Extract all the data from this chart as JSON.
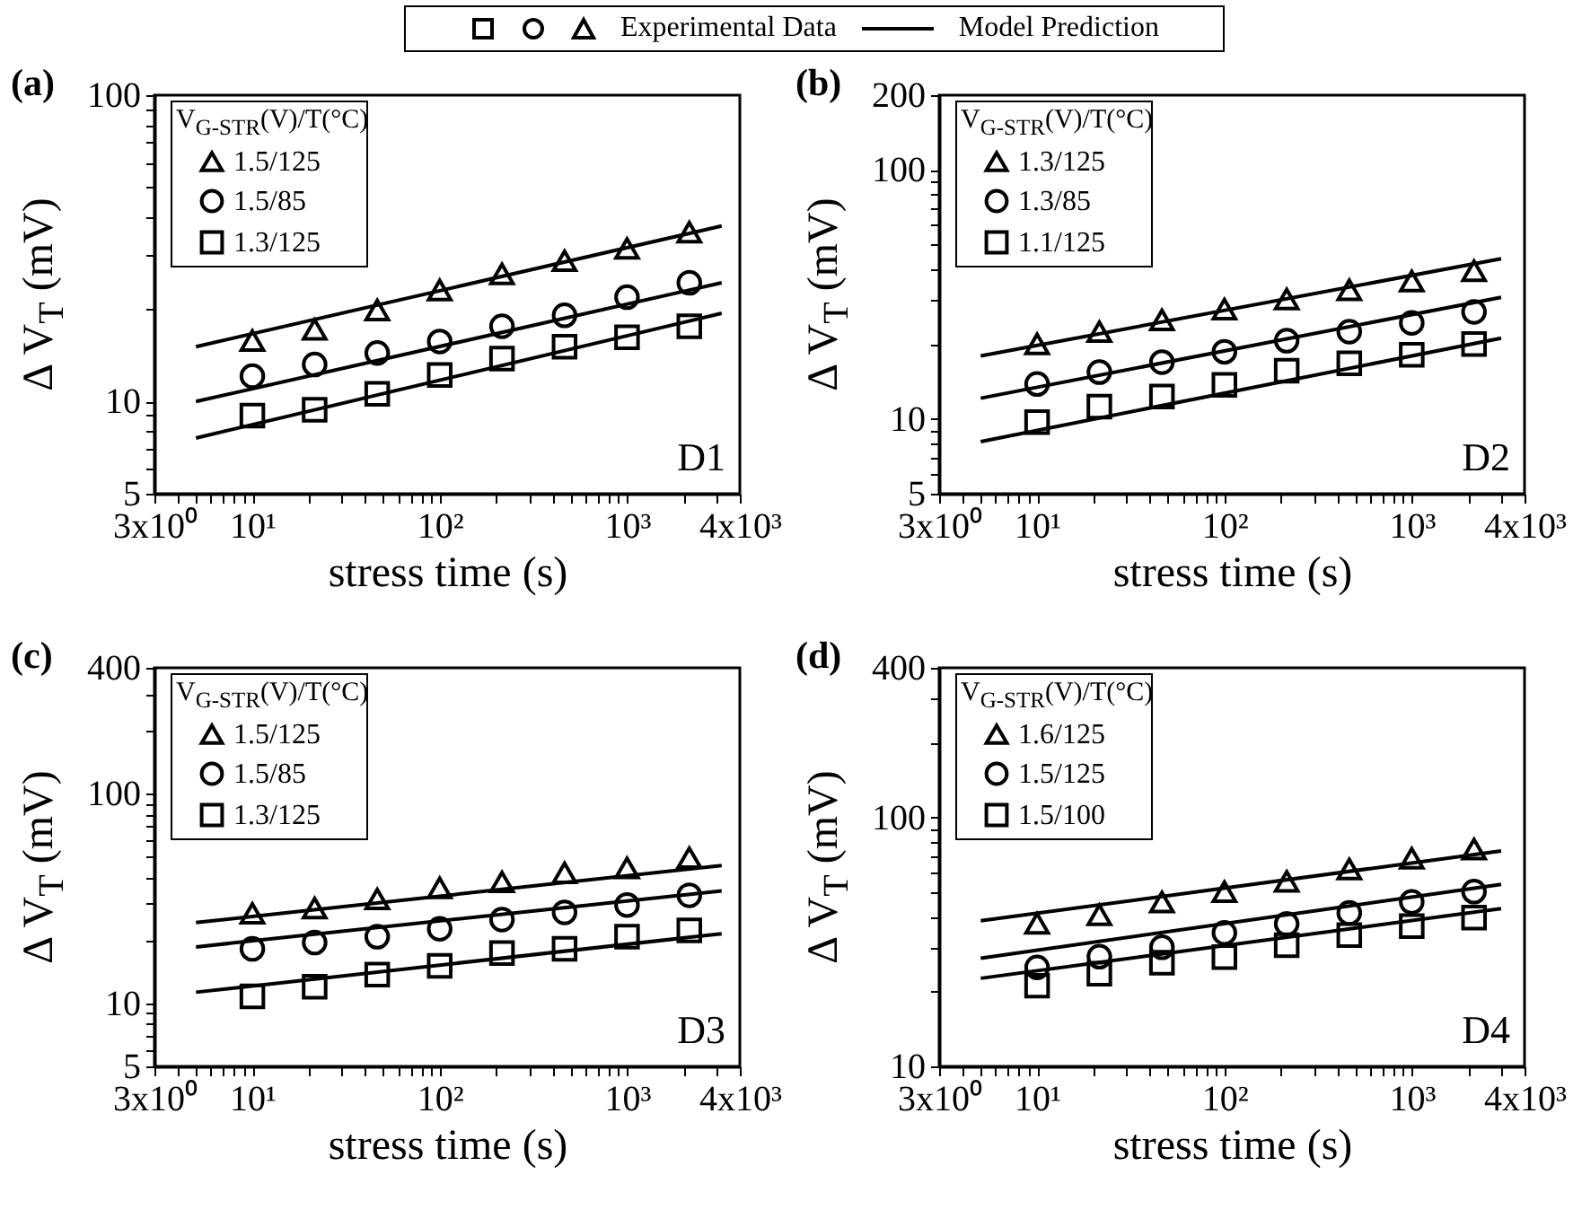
{
  "chart_data": [
    {
      "type": "scatter",
      "title": "(a)",
      "xlabel": "stress time (s)",
      "ylabel": "Δ V$_{T}$ (mV)",
      "legend_title": "V$_{G-STR}$(V)/T(°C)",
      "legend": "top left",
      "log": "xy",
      "annotations": [
        "D1",
        "Experimental Data",
        "Model Prediction"
      ],
      "xlim": [
        3,
        4000
      ],
      "xticks": [
        {
          "value": 3,
          "label": "3x10⁰"
        },
        {
          "value": 4,
          "label": null
        },
        {
          "value": 5,
          "label": null
        },
        {
          "value": 6,
          "label": null
        },
        {
          "value": 7,
          "label": null
        },
        {
          "value": 8,
          "label": null
        },
        {
          "value": 9,
          "label": null
        },
        {
          "value": 10,
          "label": "10¹"
        },
        {
          "value": 20,
          "label": null
        },
        {
          "value": 30,
          "label": null
        },
        {
          "value": 40,
          "label": null
        },
        {
          "value": 50,
          "label": null
        },
        {
          "value": 60,
          "label": null
        },
        {
          "value": 70,
          "label": null
        },
        {
          "value": 80,
          "label": null
        },
        {
          "value": 90,
          "label": null
        },
        {
          "value": 100,
          "label": "10²"
        },
        {
          "value": 200,
          "label": null
        },
        {
          "value": 300,
          "label": null
        },
        {
          "value": 400,
          "label": null
        },
        {
          "value": 500,
          "label": null
        },
        {
          "value": 600,
          "label": null
        },
        {
          "value": 700,
          "label": null
        },
        {
          "value": 800,
          "label": null
        },
        {
          "value": 900,
          "label": null
        },
        {
          "value": 1000,
          "label": "10³"
        },
        {
          "value": 2000,
          "label": null
        },
        {
          "value": 3000,
          "label": null
        },
        {
          "value": 4000,
          "label": "4x10³"
        }
      ],
      "ylim": [
        5,
        100
      ],
      "yticks": [
        5,
        {
          "value": 6,
          "label": null
        },
        {
          "value": 7,
          "label": null
        },
        {
          "value": 8,
          "label": null
        },
        {
          "value": 9,
          "label": null
        },
        10,
        {
          "value": 20,
          "label": null
        },
        {
          "value": 30,
          "label": null
        },
        {
          "value": 40,
          "label": null
        },
        {
          "value": 50,
          "label": null
        },
        {
          "value": 60,
          "label": null
        },
        {
          "value": 70,
          "label": null
        },
        {
          "value": 80,
          "label": null
        },
        {
          "value": 90,
          "label": null
        },
        100
      ],
      "x": [
        10,
        21.5,
        46.4,
        100,
        215,
        464,
        1000,
        2150
      ],
      "series": [
        {
          "name": "1.5/125",
          "color": "#000000",
          "marker": "triangle",
          "values": [
            15.8,
            17.2,
            19.9,
            23.1,
            26.1,
            28.8,
            31.6,
            35.7
          ]
        },
        {
          "name": "1.5/85",
          "color": "#000000",
          "marker": "circle",
          "values": [
            12.1,
            13.2,
            14.4,
            15.7,
            17.6,
            19.1,
            21.9,
            24.4
          ]
        },
        {
          "name": "1.3/125",
          "color": "#000000",
          "marker": "square",
          "values": [
            9.0,
            9.4,
            10.6,
            12.2,
            13.8,
            15.1,
            16.2,
            17.6
          ]
        },
        {
          "type": "line",
          "color": "#000000",
          "x": [
            5,
            3200
          ],
          "values": [
            15.1,
            37.4
          ]
        },
        {
          "type": "line",
          "color": "#000000",
          "x": [
            5,
            3200
          ],
          "values": [
            10.0,
            24.4
          ]
        },
        {
          "type": "line",
          "color": "#000000",
          "x": [
            5,
            3200
          ],
          "values": [
            7.6,
            19.4
          ]
        }
      ]
    },
    {
      "type": "scatter",
      "title": "(b)",
      "xlabel": "stress time (s)",
      "ylabel": "Δ V$_{T}$ (mV)",
      "legend_title": "V$_{G-STR}$(V)/T(°C)",
      "legend": "top left",
      "log": "xy",
      "annotations": [
        "D2"
      ],
      "xlim": [
        3,
        4000
      ],
      "xticks": [
        {
          "value": 3,
          "label": "3x10⁰"
        },
        {
          "value": 4,
          "label": null
        },
        {
          "value": 5,
          "label": null
        },
        {
          "value": 6,
          "label": null
        },
        {
          "value": 7,
          "label": null
        },
        {
          "value": 8,
          "label": null
        },
        {
          "value": 9,
          "label": null
        },
        {
          "value": 10,
          "label": "10¹"
        },
        {
          "value": 20,
          "label": null
        },
        {
          "value": 30,
          "label": null
        },
        {
          "value": 40,
          "label": null
        },
        {
          "value": 50,
          "label": null
        },
        {
          "value": 60,
          "label": null
        },
        {
          "value": 70,
          "label": null
        },
        {
          "value": 80,
          "label": null
        },
        {
          "value": 90,
          "label": null
        },
        {
          "value": 100,
          "label": "10²"
        },
        {
          "value": 200,
          "label": null
        },
        {
          "value": 300,
          "label": null
        },
        {
          "value": 400,
          "label": null
        },
        {
          "value": 500,
          "label": null
        },
        {
          "value": 600,
          "label": null
        },
        {
          "value": 700,
          "label": null
        },
        {
          "value": 800,
          "label": null
        },
        {
          "value": 900,
          "label": null
        },
        {
          "value": 1000,
          "label": "10³"
        },
        {
          "value": 2000,
          "label": null
        },
        {
          "value": 3000,
          "label": null
        },
        {
          "value": 4000,
          "label": "4x10³"
        }
      ],
      "ylim": [
        5,
        200
      ],
      "yticks": [
        5,
        {
          "value": 6,
          "label": null
        },
        {
          "value": 7,
          "label": null
        },
        {
          "value": 8,
          "label": null
        },
        {
          "value": 9,
          "label": null
        },
        10,
        {
          "value": 20,
          "label": null
        },
        {
          "value": 30,
          "label": null
        },
        {
          "value": 40,
          "label": null
        },
        {
          "value": 50,
          "label": null
        },
        {
          "value": 60,
          "label": null
        },
        {
          "value": 70,
          "label": null
        },
        {
          "value": 80,
          "label": null
        },
        {
          "value": 90,
          "label": null
        },
        100,
        200
      ],
      "x": [
        10,
        21.5,
        46.4,
        100,
        215,
        464,
        1000,
        2150
      ],
      "series": [
        {
          "name": "1.3/125",
          "color": "#000000",
          "marker": "triangle",
          "values": [
            20.0,
            22.4,
            25.0,
            27.6,
            30.3,
            33.0,
            35.8,
            39.4
          ]
        },
        {
          "name": "1.3/85",
          "color": "#000000",
          "marker": "circle",
          "values": [
            13.8,
            15.4,
            16.9,
            18.6,
            20.6,
            22.4,
            24.3,
            26.9
          ]
        },
        {
          "name": "1.1/125",
          "color": "#000000",
          "marker": "square",
          "values": [
            9.7,
            11.2,
            12.3,
            13.7,
            15.6,
            16.7,
            18.1,
            20.0
          ]
        },
        {
          "type": "line",
          "color": "#000000",
          "x": [
            5,
            3000
          ],
          "values": [
            17.9,
            44.0
          ]
        },
        {
          "type": "line",
          "color": "#000000",
          "x": [
            5,
            3000
          ],
          "values": [
            12.1,
            30.8
          ]
        },
        {
          "type": "line",
          "color": "#000000",
          "x": [
            5,
            3000
          ],
          "values": [
            8.1,
            21.1
          ]
        }
      ]
    },
    {
      "type": "scatter",
      "title": "(c)",
      "xlabel": "stress time (s)",
      "ylabel": "Δ V$_{T}$ (mV)",
      "legend_title": "V$_{G-STR}$(V)/T(°C)",
      "legend": "top left",
      "log": "xy",
      "annotations": [
        "D3"
      ],
      "xlim": [
        3,
        4000
      ],
      "xticks": [
        {
          "value": 3,
          "label": "3x10⁰"
        },
        {
          "value": 4,
          "label": null
        },
        {
          "value": 5,
          "label": null
        },
        {
          "value": 6,
          "label": null
        },
        {
          "value": 7,
          "label": null
        },
        {
          "value": 8,
          "label": null
        },
        {
          "value": 9,
          "label": null
        },
        {
          "value": 10,
          "label": "10¹"
        },
        {
          "value": 20,
          "label": null
        },
        {
          "value": 30,
          "label": null
        },
        {
          "value": 40,
          "label": null
        },
        {
          "value": 50,
          "label": null
        },
        {
          "value": 60,
          "label": null
        },
        {
          "value": 70,
          "label": null
        },
        {
          "value": 80,
          "label": null
        },
        {
          "value": 90,
          "label": null
        },
        {
          "value": 100,
          "label": "10²"
        },
        {
          "value": 200,
          "label": null
        },
        {
          "value": 300,
          "label": null
        },
        {
          "value": 400,
          "label": null
        },
        {
          "value": 500,
          "label": null
        },
        {
          "value": 600,
          "label": null
        },
        {
          "value": 700,
          "label": null
        },
        {
          "value": 800,
          "label": null
        },
        {
          "value": 900,
          "label": null
        },
        {
          "value": 1000,
          "label": "10³"
        },
        {
          "value": 2000,
          "label": null
        },
        {
          "value": 3000,
          "label": null
        },
        {
          "value": 4000,
          "label": "4x10³"
        }
      ],
      "ylim": [
        5,
        400
      ],
      "yticks": [
        5,
        {
          "value": 6,
          "label": null
        },
        {
          "value": 7,
          "label": null
        },
        {
          "value": 8,
          "label": null
        },
        {
          "value": 9,
          "label": null
        },
        10,
        {
          "value": 20,
          "label": null
        },
        {
          "value": 30,
          "label": null
        },
        {
          "value": 40,
          "label": null
        },
        {
          "value": 50,
          "label": null
        },
        {
          "value": 60,
          "label": null
        },
        {
          "value": 70,
          "label": null
        },
        {
          "value": 80,
          "label": null
        },
        {
          "value": 90,
          "label": null
        },
        100,
        {
          "value": 200,
          "label": null
        },
        {
          "value": 300,
          "label": null
        },
        400
      ],
      "x": [
        10,
        21.5,
        46.4,
        100,
        215,
        464,
        1000,
        2150
      ],
      "series": [
        {
          "name": "1.5/125",
          "color": "#000000",
          "marker": "triangle",
          "values": [
            26.9,
            28.5,
            31.5,
            35.6,
            38.0,
            42.0,
            44.3,
            49.6
          ]
        },
        {
          "name": "1.5/85",
          "color": "#000000",
          "marker": "circle",
          "values": [
            18.2,
            19.5,
            20.8,
            22.7,
            25.1,
            27.2,
            29.5,
            32.8
          ]
        },
        {
          "name": "1.3/125",
          "color": "#000000",
          "marker": "square",
          "values": [
            10.8,
            12.0,
            13.7,
            15.1,
            17.4,
            18.2,
            20.8,
            22.3
          ]
        },
        {
          "type": "line",
          "color": "#000000",
          "x": [
            5,
            3200
          ],
          "values": [
            24.3,
            45.5
          ]
        },
        {
          "type": "line",
          "color": "#000000",
          "x": [
            5,
            3200
          ],
          "values": [
            18.6,
            34.4
          ]
        },
        {
          "type": "line",
          "color": "#000000",
          "x": [
            5,
            3200
          ],
          "values": [
            11.3,
            21.5
          ]
        }
      ]
    },
    {
      "type": "scatter",
      "title": "(d)",
      "xlabel": "stress time (s)",
      "ylabel": "Δ V$_{T}$ (mV)",
      "legend_title": "V$_{G-STR}$(V)/T(°C)",
      "legend": "top left",
      "log": "xy",
      "annotations": [
        "D4"
      ],
      "xlim": [
        3,
        4000
      ],
      "xticks": [
        {
          "value": 3,
          "label": "3x10⁰"
        },
        {
          "value": 4,
          "label": null
        },
        {
          "value": 5,
          "label": null
        },
        {
          "value": 6,
          "label": null
        },
        {
          "value": 7,
          "label": null
        },
        {
          "value": 8,
          "label": null
        },
        {
          "value": 9,
          "label": null
        },
        {
          "value": 10,
          "label": "10¹"
        },
        {
          "value": 20,
          "label": null
        },
        {
          "value": 30,
          "label": null
        },
        {
          "value": 40,
          "label": null
        },
        {
          "value": 50,
          "label": null
        },
        {
          "value": 60,
          "label": null
        },
        {
          "value": 70,
          "label": null
        },
        {
          "value": 80,
          "label": null
        },
        {
          "value": 90,
          "label": null
        },
        {
          "value": 100,
          "label": "10²"
        },
        {
          "value": 200,
          "label": null
        },
        {
          "value": 300,
          "label": null
        },
        {
          "value": 400,
          "label": null
        },
        {
          "value": 500,
          "label": null
        },
        {
          "value": 600,
          "label": null
        },
        {
          "value": 700,
          "label": null
        },
        {
          "value": 800,
          "label": null
        },
        {
          "value": 900,
          "label": null
        },
        {
          "value": 1000,
          "label": "10³"
        },
        {
          "value": 2000,
          "label": null
        },
        {
          "value": 3000,
          "label": null
        },
        {
          "value": 4000,
          "label": "4x10³"
        }
      ],
      "ylim": [
        10,
        400
      ],
      "yticks": [
        10,
        {
          "value": 20,
          "label": null
        },
        {
          "value": 30,
          "label": null
        },
        {
          "value": 40,
          "label": null
        },
        {
          "value": 50,
          "label": null
        },
        {
          "value": 60,
          "label": null
        },
        {
          "value": 70,
          "label": null
        },
        {
          "value": 80,
          "label": null
        },
        {
          "value": 90,
          "label": null
        },
        100,
        {
          "value": 200,
          "label": null
        },
        {
          "value": 300,
          "label": null
        },
        400
      ],
      "x": [
        10,
        21.5,
        46.4,
        100,
        215,
        464,
        1000,
        2150
      ],
      "series": [
        {
          "name": "1.6/125",
          "color": "#000000",
          "marker": "triangle",
          "values": [
            37.6,
            40.7,
            45.8,
            50.4,
            55.4,
            62.1,
            68.7,
            74.7
          ]
        },
        {
          "name": "1.5/125",
          "color": "#000000",
          "marker": "circle",
          "values": [
            25.0,
            27.6,
            30.1,
            34.4,
            37.4,
            41.4,
            45.8,
            50.4
          ]
        },
        {
          "name": "1.5/100",
          "color": "#000000",
          "marker": "square",
          "values": [
            21.1,
            23.6,
            26.1,
            27.5,
            30.7,
            33.7,
            36.6,
            39.6
          ]
        },
        {
          "type": "line",
          "color": "#000000",
          "x": [
            5,
            3000
          ],
          "values": [
            38.5,
            73.4
          ]
        },
        {
          "type": "line",
          "color": "#000000",
          "x": [
            5,
            3000
          ],
          "values": [
            27.2,
            53.9
          ]
        },
        {
          "type": "line",
          "color": "#000000",
          "x": [
            5,
            3000
          ],
          "values": [
            22.6,
            43.1
          ]
        }
      ]
    }
  ]
}
